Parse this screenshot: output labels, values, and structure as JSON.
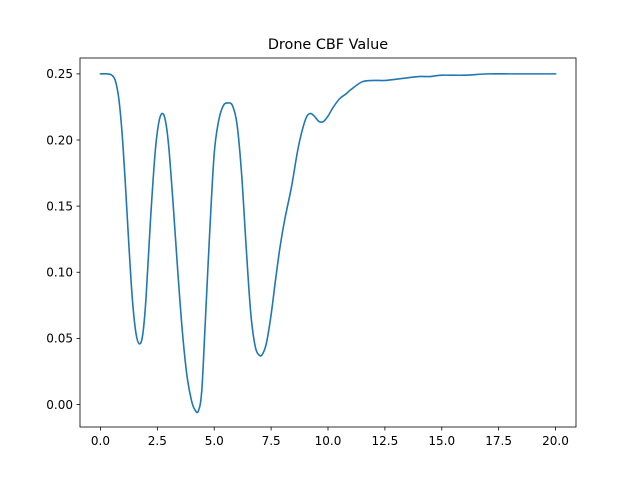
{
  "chart_data": {
    "type": "line",
    "title": "Drone CBF Value",
    "xlabel": "",
    "ylabel": "",
    "xlim": [
      -0.9,
      20.9
    ],
    "ylim": [
      -0.017,
      0.262
    ],
    "xticks": [
      0.0,
      2.5,
      5.0,
      7.5,
      10.0,
      12.5,
      15.0,
      17.5,
      20.0
    ],
    "xtick_labels": [
      "0.0",
      "2.5",
      "5.0",
      "7.5",
      "10.0",
      "12.5",
      "15.0",
      "17.5",
      "20.0"
    ],
    "yticks": [
      0.0,
      0.05,
      0.1,
      0.15,
      0.2,
      0.25
    ],
    "ytick_labels": [
      "0.00",
      "0.05",
      "0.10",
      "0.15",
      "0.20",
      "0.25"
    ],
    "grid": false,
    "series": [
      {
        "color": "#1f77b4",
        "x": [
          0.0,
          0.3,
          0.5,
          0.65,
          0.8,
          0.95,
          1.1,
          1.25,
          1.4,
          1.55,
          1.7,
          1.85,
          2.0,
          2.2,
          2.4,
          2.55,
          2.7,
          2.85,
          3.0,
          3.2,
          3.4,
          3.6,
          3.8,
          4.0,
          4.15,
          4.3,
          4.45,
          4.6,
          4.8,
          5.0,
          5.2,
          5.4,
          5.6,
          5.8,
          6.0,
          6.2,
          6.4,
          6.6,
          6.8,
          7.0,
          7.15,
          7.3,
          7.5,
          7.7,
          7.9,
          8.1,
          8.4,
          8.7,
          9.0,
          9.2,
          9.4,
          9.6,
          9.8,
          10.0,
          10.2,
          10.5,
          10.8,
          11.0,
          11.5,
          12.0,
          12.5,
          13.0,
          13.5,
          14.0,
          14.5,
          15.0,
          16.0,
          17.0,
          18.0,
          19.0,
          20.0
        ],
        "y": [
          0.25,
          0.25,
          0.249,
          0.245,
          0.232,
          0.205,
          0.165,
          0.12,
          0.08,
          0.055,
          0.046,
          0.052,
          0.08,
          0.14,
          0.19,
          0.212,
          0.22,
          0.215,
          0.195,
          0.15,
          0.1,
          0.055,
          0.022,
          0.003,
          -0.004,
          -0.005,
          0.01,
          0.06,
          0.13,
          0.19,
          0.215,
          0.226,
          0.228,
          0.226,
          0.212,
          0.175,
          0.12,
          0.07,
          0.044,
          0.037,
          0.039,
          0.047,
          0.068,
          0.095,
          0.12,
          0.14,
          0.165,
          0.195,
          0.215,
          0.22,
          0.218,
          0.214,
          0.214,
          0.218,
          0.224,
          0.231,
          0.235,
          0.238,
          0.244,
          0.245,
          0.245,
          0.246,
          0.247,
          0.248,
          0.248,
          0.249,
          0.249,
          0.25,
          0.25,
          0.25,
          0.25
        ]
      }
    ]
  }
}
